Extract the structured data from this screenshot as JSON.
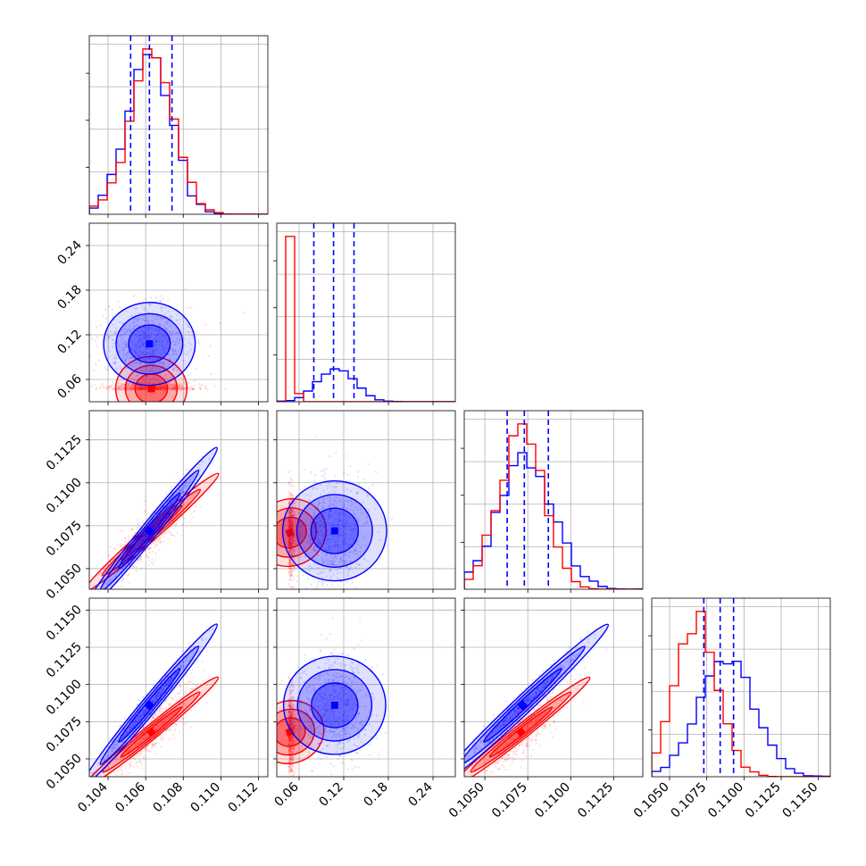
{
  "colors": {
    "series_a": "#0000ff",
    "series_b": "#ff0000",
    "grid": "#b0b0b0",
    "axis": "#000000"
  },
  "chart_data": {
    "type": "corner",
    "grid": true,
    "series": [
      {
        "color": "#0000ff",
        "means": [
          0.1062,
          0.1078,
          0.1072,
          0.1086
        ],
        "sigmas": [
          0.00115,
          0.024,
          0.0016,
          0.0018
        ],
        "quantile_lines": true
      },
      {
        "color": "#ff0000",
        "means": [
          0.1063,
          0.0475,
          0.1071,
          0.1068
        ],
        "sigmas": [
          0.00115,
          0.004,
          0.0013,
          0.0014
        ],
        "quantile_lines": false
      }
    ],
    "quantiles": [
      [
        0.1052,
        0.1062,
        0.1074
      ],
      [
        0.0798,
        0.1063,
        0.1338
      ],
      [
        0.1063,
        0.1073,
        0.1087
      ],
      [
        0.1073,
        0.1084,
        0.1093
      ]
    ],
    "pair_correlations": {
      "1-0": [
        0.05,
        0.05
      ],
      "2-0": [
        0.97,
        0.85
      ],
      "2-1": [
        0.02,
        0.05
      ],
      "3-0": [
        0.97,
        0.85
      ],
      "3-1": [
        0.02,
        0.05
      ],
      "3-2": [
        0.97,
        0.85
      ]
    },
    "params": [
      {
        "range": [
          0.103,
          0.1125
        ],
        "ticks": [
          "0.104",
          "0.106",
          "0.108",
          "0.110",
          "0.112"
        ]
      },
      {
        "range": [
          0.03,
          0.27
        ],
        "ticks": [
          "0.06",
          "0.12",
          "0.18",
          "0.24"
        ]
      },
      {
        "range": [
          0.1038,
          0.1142
        ],
        "ticks": [
          "0.1050",
          "0.1075",
          "0.1100",
          "0.1125"
        ]
      },
      {
        "range": [
          0.1038,
          0.1158
        ],
        "ticks": [
          "0.1050",
          "0.1075",
          "0.1100",
          "0.1125",
          "0.1150"
        ]
      }
    ]
  }
}
